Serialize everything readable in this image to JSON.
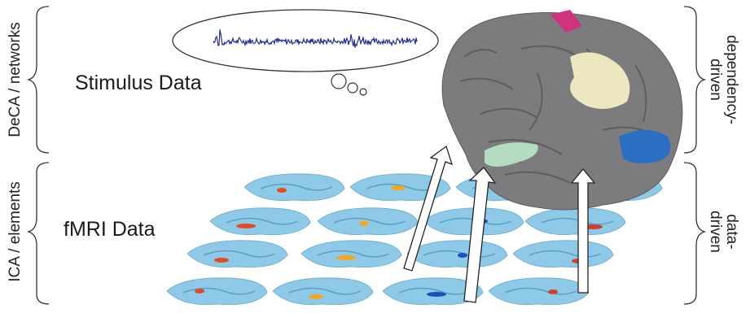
{
  "left_labels": {
    "top": "DeCA / networks",
    "bottom": "ICA / elements"
  },
  "center_labels": {
    "stimulus": "Stimulus Data",
    "fmri": "fMRI Data"
  },
  "right_labels": {
    "top": [
      "dependency-",
      "driven"
    ],
    "bottom": [
      "data-",
      "driven"
    ]
  },
  "colors": {
    "brain": "#7c7c7e",
    "slice": "#8ec9e8",
    "trace": "#2a2a9a",
    "magenta": "#d0327f",
    "cream": "#ece7bf",
    "green": "#b3dcc0",
    "blue": "#2b6fc2"
  }
}
